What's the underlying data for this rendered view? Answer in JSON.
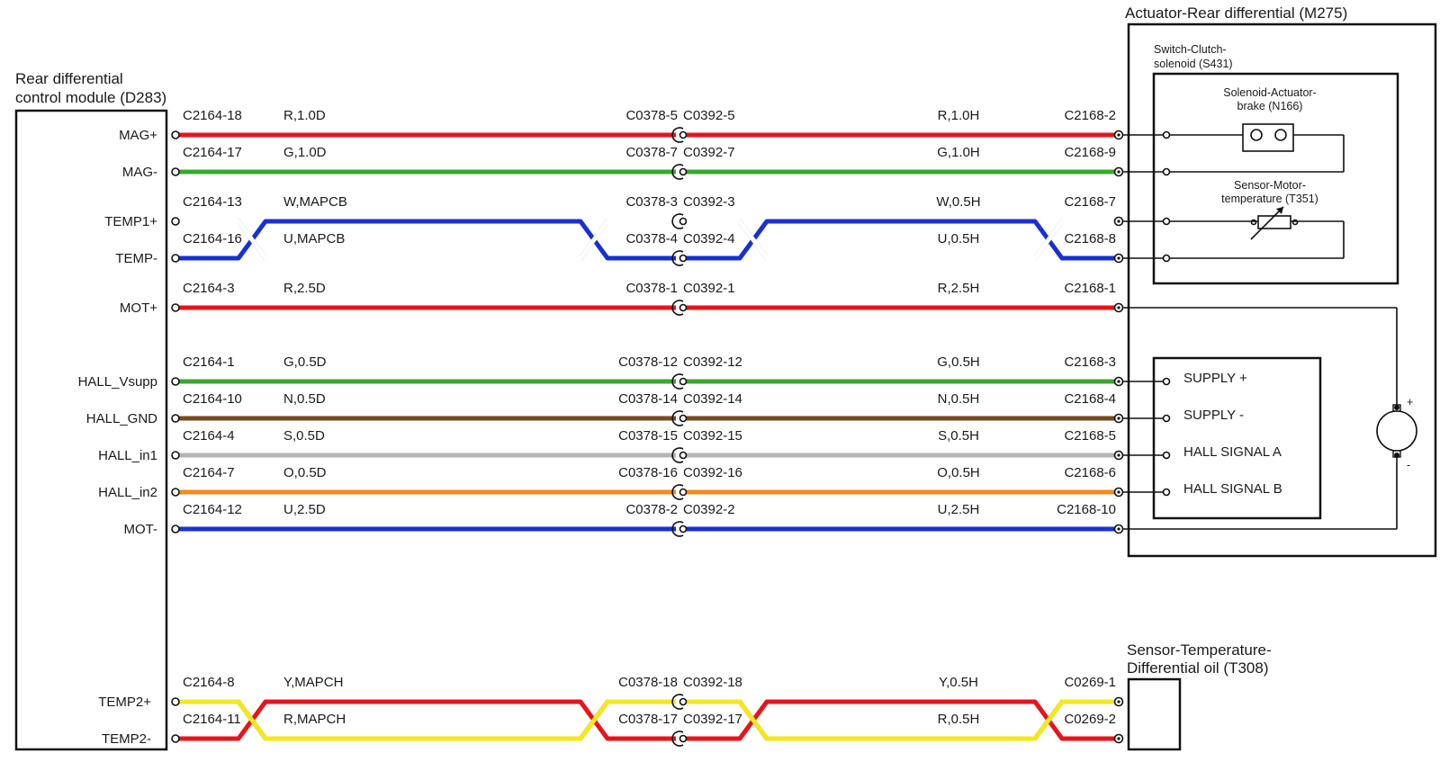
{
  "components": {
    "module": {
      "title_line1": "Rear differential",
      "title_line2": "control module (D283)"
    },
    "actuator": {
      "title": "Actuator-Rear differential (M275)"
    },
    "clutch": {
      "title_line1": "Switch-Clutch-",
      "title_line2": "solenoid (S431)"
    },
    "brake": {
      "title_line1": "Solenoid-Actuator-",
      "title_line2": "brake (N166)"
    },
    "motor_temp": {
      "title_line1": "Sensor-Motor-",
      "title_line2": "temperature (T351)"
    },
    "hall_box": {
      "labels": [
        "SUPPLY +",
        "SUPPLY -",
        "HALL SIGNAL A",
        "HALL SIGNAL B"
      ]
    },
    "motor": {
      "plus": "+",
      "minus": "-"
    },
    "oil_sensor": {
      "title_line1": "Sensor-Temperature-",
      "title_line2": "Differential oil (T308)"
    }
  },
  "circuits": [
    {
      "pin": "MAG+",
      "c_left": "C2164-18",
      "w_left": "R,1.0D",
      "j_left": "C0378-5",
      "j_right": "C0392-5",
      "w_right": "R,1.0H",
      "c_right": "C2168-2",
      "color": "#e8141b"
    },
    {
      "pin": "MAG-",
      "c_left": "C2164-17",
      "w_left": "G,1.0D",
      "j_left": "C0378-7",
      "j_right": "C0392-7",
      "w_right": "G,1.0H",
      "c_right": "C2168-9",
      "color": "#3aa82f"
    },
    {
      "pin": "TEMP1+",
      "c_left": "C2164-13",
      "w_left": "W,MAPCB",
      "j_left": "C0378-3",
      "j_right": "C0392-3",
      "w_right": "W,0.5H",
      "c_right": "C2168-7",
      "color": "#ffffff"
    },
    {
      "pin": "TEMP-",
      "c_left": "C2164-16",
      "w_left": "U,MAPCB",
      "j_left": "C0378-4",
      "j_right": "C0392-4",
      "w_right": "U,0.5H",
      "c_right": "C2168-8",
      "color": "#1730d6"
    },
    {
      "pin": "MOT+",
      "c_left": "C2164-3",
      "w_left": "R,2.5D",
      "j_left": "C0378-1",
      "j_right": "C0392-1",
      "w_right": "R,2.5H",
      "c_right": "C2168-1",
      "color": "#e8141b"
    },
    {
      "pin": "HALL_Vsupp",
      "c_left": "C2164-1",
      "w_left": "G,0.5D",
      "j_left": "C0378-12",
      "j_right": "C0392-12",
      "w_right": "G,0.5H",
      "c_right": "C2168-3",
      "color": "#3aa82f"
    },
    {
      "pin": "HALL_GND",
      "c_left": "C2164-10",
      "w_left": "N,0.5D",
      "j_left": "C0378-14",
      "j_right": "C0392-14",
      "w_right": "N,0.5H",
      "c_right": "C2168-4",
      "color": "#7a4a1c"
    },
    {
      "pin": "HALL_in1",
      "c_left": "C2164-4",
      "w_left": "S,0.5D",
      "j_left": "C0378-15",
      "j_right": "C0392-15",
      "w_right": "S,0.5H",
      "c_right": "C2168-5",
      "color": "#b5b5b5"
    },
    {
      "pin": "HALL_in2",
      "c_left": "C2164-7",
      "w_left": "O,0.5D",
      "j_left": "C0378-16",
      "j_right": "C0392-16",
      "w_right": "O,0.5H",
      "c_right": "C2168-6",
      "color": "#f08c1a"
    },
    {
      "pin": "MOT-",
      "c_left": "C2164-12",
      "w_left": "U,2.5D",
      "j_left": "C0378-2",
      "j_right": "C0392-2",
      "w_right": "U,2.5H",
      "c_right": "C2168-10",
      "color": "#1730d6"
    },
    {
      "pin": "TEMP2+",
      "c_left": "C2164-8",
      "w_left": "Y,MAPCH",
      "j_left": "C0378-18",
      "j_right": "C0392-18",
      "w_right": "Y,0.5H",
      "c_right": "C0269-1",
      "color": "#f5e81c"
    },
    {
      "pin": "TEMP2-",
      "c_left": "C2164-11",
      "w_left": "R,MAPCH",
      "j_left": "C0378-17",
      "j_right": "C0392-17",
      "w_right": "R,0.5H",
      "c_right": "C0269-2",
      "color": "#e8141b"
    }
  ]
}
